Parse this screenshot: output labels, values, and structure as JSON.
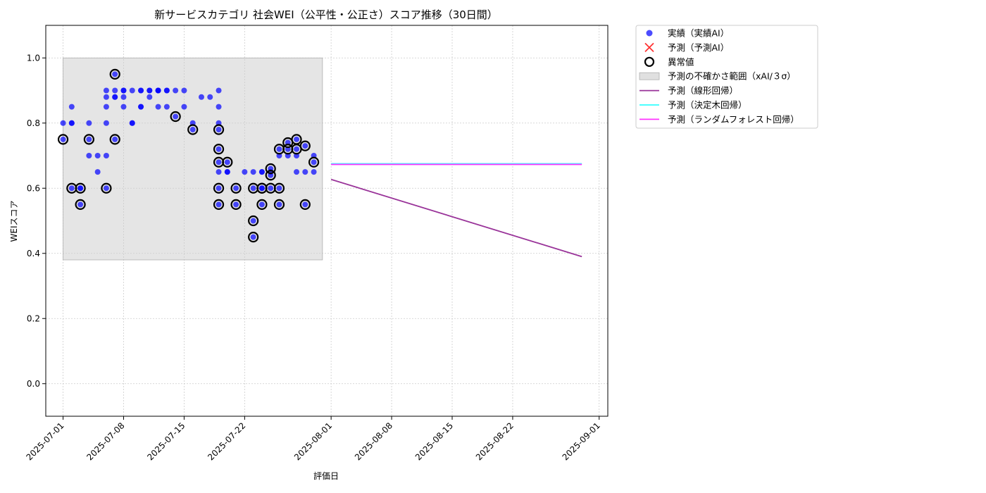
{
  "chart_data": {
    "type": "scatter",
    "title": "新サービスカテゴリ 社会WEI（公平性・公正さ）スコア推移（30日間）",
    "xlabel": "評価日",
    "ylabel": "WEIスコア",
    "xlim": [
      "2025-06-29",
      "2025-09-02"
    ],
    "ylim": [
      -0.1,
      1.1
    ],
    "x_ticks": [
      "2025-07-01",
      "2025-07-08",
      "2025-07-15",
      "2025-07-22",
      "2025-08-01",
      "2025-08-08",
      "2025-08-15",
      "2025-08-22",
      "2025-09-01"
    ],
    "y_ticks": [
      "0.0",
      "0.2",
      "0.4",
      "0.6",
      "0.8",
      "1.0"
    ],
    "grid": true,
    "legend_position": "outside-top-right",
    "uncertainty_band": {
      "x": [
        "2025-07-01",
        "2025-07-31"
      ],
      "y": [
        0.38,
        1.0
      ],
      "color": "#cccccc"
    },
    "series": [
      {
        "name": "実績（実績AI）",
        "kind": "scatter",
        "color": "#0000ff",
        "points": [
          [
            "2025-07-01",
            0.8
          ],
          [
            "2025-07-01",
            0.75
          ],
          [
            "2025-07-02",
            0.8
          ],
          [
            "2025-07-02",
            0.85
          ],
          [
            "2025-07-02",
            0.8
          ],
          [
            "2025-07-02",
            0.6
          ],
          [
            "2025-07-03",
            0.6
          ],
          [
            "2025-07-03",
            0.55
          ],
          [
            "2025-07-03",
            0.6
          ],
          [
            "2025-07-04",
            0.75
          ],
          [
            "2025-07-04",
            0.8
          ],
          [
            "2025-07-04",
            0.7
          ],
          [
            "2025-07-05",
            0.65
          ],
          [
            "2025-07-05",
            0.7
          ],
          [
            "2025-07-06",
            0.7
          ],
          [
            "2025-07-06",
            0.8
          ],
          [
            "2025-07-06",
            0.6
          ],
          [
            "2025-07-06",
            0.85
          ],
          [
            "2025-07-06",
            0.88
          ],
          [
            "2025-07-06",
            0.9
          ],
          [
            "2025-07-07",
            0.88
          ],
          [
            "2025-07-07",
            0.9
          ],
          [
            "2025-07-07",
            0.88
          ],
          [
            "2025-07-07",
            0.95
          ],
          [
            "2025-07-07",
            0.75
          ],
          [
            "2025-07-08",
            0.88
          ],
          [
            "2025-07-08",
            0.9
          ],
          [
            "2025-07-08",
            0.85
          ],
          [
            "2025-07-08",
            0.9
          ],
          [
            "2025-07-09",
            0.9
          ],
          [
            "2025-07-09",
            0.8
          ],
          [
            "2025-07-09",
            0.8
          ],
          [
            "2025-07-10",
            0.85
          ],
          [
            "2025-07-10",
            0.9
          ],
          [
            "2025-07-10",
            0.85
          ],
          [
            "2025-07-10",
            0.9
          ],
          [
            "2025-07-11",
            0.9
          ],
          [
            "2025-07-11",
            0.88
          ],
          [
            "2025-07-11",
            0.9
          ],
          [
            "2025-07-12",
            0.9
          ],
          [
            "2025-07-12",
            0.9
          ],
          [
            "2025-07-12",
            0.85
          ],
          [
            "2025-07-12",
            0.9
          ],
          [
            "2025-07-13",
            0.9
          ],
          [
            "2025-07-13",
            0.85
          ],
          [
            "2025-07-13",
            0.9
          ],
          [
            "2025-07-14",
            0.9
          ],
          [
            "2025-07-14",
            0.82
          ],
          [
            "2025-07-15",
            0.9
          ],
          [
            "2025-07-15",
            0.85
          ],
          [
            "2025-07-16",
            0.78
          ],
          [
            "2025-07-16",
            0.8
          ],
          [
            "2025-07-17",
            0.88
          ],
          [
            "2025-07-18",
            0.88
          ],
          [
            "2025-07-19",
            0.9
          ],
          [
            "2025-07-19",
            0.85
          ],
          [
            "2025-07-19",
            0.78
          ],
          [
            "2025-07-19",
            0.8
          ],
          [
            "2025-07-19",
            0.72
          ],
          [
            "2025-07-19",
            0.68
          ],
          [
            "2025-07-19",
            0.65
          ],
          [
            "2025-07-19",
            0.6
          ],
          [
            "2025-07-19",
            0.55
          ],
          [
            "2025-07-20",
            0.68
          ],
          [
            "2025-07-20",
            0.65
          ],
          [
            "2025-07-20",
            0.65
          ],
          [
            "2025-07-21",
            0.6
          ],
          [
            "2025-07-21",
            0.55
          ],
          [
            "2025-07-22",
            0.65
          ],
          [
            "2025-07-23",
            0.6
          ],
          [
            "2025-07-23",
            0.5
          ],
          [
            "2025-07-23",
            0.45
          ],
          [
            "2025-07-23",
            0.65
          ],
          [
            "2025-07-24",
            0.65
          ],
          [
            "2025-07-24",
            0.6
          ],
          [
            "2025-07-24",
            0.65
          ],
          [
            "2025-07-24",
            0.6
          ],
          [
            "2025-07-24",
            0.55
          ],
          [
            "2025-07-25",
            0.66
          ],
          [
            "2025-07-25",
            0.65
          ],
          [
            "2025-07-25",
            0.64
          ],
          [
            "2025-07-25",
            0.6
          ],
          [
            "2025-07-26",
            0.6
          ],
          [
            "2025-07-26",
            0.55
          ],
          [
            "2025-07-26",
            0.7
          ],
          [
            "2025-07-26",
            0.72
          ],
          [
            "2025-07-27",
            0.74
          ],
          [
            "2025-07-27",
            0.72
          ],
          [
            "2025-07-27",
            0.7
          ],
          [
            "2025-07-28",
            0.75
          ],
          [
            "2025-07-28",
            0.72
          ],
          [
            "2025-07-28",
            0.65
          ],
          [
            "2025-07-28",
            0.7
          ],
          [
            "2025-07-29",
            0.73
          ],
          [
            "2025-07-29",
            0.55
          ],
          [
            "2025-07-29",
            0.65
          ],
          [
            "2025-07-30",
            0.68
          ],
          [
            "2025-07-30",
            0.7
          ],
          [
            "2025-07-30",
            0.65
          ]
        ]
      },
      {
        "name": "予測（予測AI）",
        "kind": "marker-x",
        "color": "#ff3333",
        "points": []
      },
      {
        "name": "異常値",
        "kind": "ring",
        "color": "#000000",
        "points": [
          [
            "2025-07-01",
            0.75
          ],
          [
            "2025-07-02",
            0.6
          ],
          [
            "2025-07-03",
            0.6
          ],
          [
            "2025-07-03",
            0.55
          ],
          [
            "2025-07-04",
            0.75
          ],
          [
            "2025-07-06",
            0.6
          ],
          [
            "2025-07-07",
            0.95
          ],
          [
            "2025-07-07",
            0.75
          ],
          [
            "2025-07-14",
            0.82
          ],
          [
            "2025-07-16",
            0.78
          ],
          [
            "2025-07-19",
            0.78
          ],
          [
            "2025-07-19",
            0.72
          ],
          [
            "2025-07-19",
            0.68
          ],
          [
            "2025-07-19",
            0.6
          ],
          [
            "2025-07-19",
            0.55
          ],
          [
            "2025-07-20",
            0.68
          ],
          [
            "2025-07-21",
            0.6
          ],
          [
            "2025-07-21",
            0.55
          ],
          [
            "2025-07-23",
            0.6
          ],
          [
            "2025-07-23",
            0.5
          ],
          [
            "2025-07-23",
            0.45
          ],
          [
            "2025-07-24",
            0.6
          ],
          [
            "2025-07-24",
            0.6
          ],
          [
            "2025-07-24",
            0.55
          ],
          [
            "2025-07-25",
            0.66
          ],
          [
            "2025-07-25",
            0.64
          ],
          [
            "2025-07-25",
            0.6
          ],
          [
            "2025-07-26",
            0.6
          ],
          [
            "2025-07-26",
            0.55
          ],
          [
            "2025-07-26",
            0.72
          ],
          [
            "2025-07-27",
            0.74
          ],
          [
            "2025-07-27",
            0.72
          ],
          [
            "2025-07-28",
            0.75
          ],
          [
            "2025-07-28",
            0.72
          ],
          [
            "2025-07-29",
            0.73
          ],
          [
            "2025-07-29",
            0.55
          ],
          [
            "2025-07-30",
            0.68
          ]
        ]
      },
      {
        "name": "予測の不確かさ範囲（xAI/３σ）",
        "kind": "band",
        "color": "#cccccc"
      },
      {
        "name": "予測（線形回帰）",
        "kind": "line",
        "color": "#993399",
        "points": [
          [
            "2025-08-01",
            0.627
          ],
          [
            "2025-08-30",
            0.39
          ]
        ]
      },
      {
        "name": "予測（決定木回帰）",
        "kind": "line",
        "color": "#33ffff",
        "points": [
          [
            "2025-08-01",
            0.675
          ],
          [
            "2025-08-30",
            0.675
          ]
        ]
      },
      {
        "name": "予測（ランダムフォレスト回帰）",
        "kind": "line",
        "color": "#ff33ff",
        "points": [
          [
            "2025-08-01",
            0.673
          ],
          [
            "2025-08-30",
            0.673
          ]
        ]
      }
    ]
  }
}
